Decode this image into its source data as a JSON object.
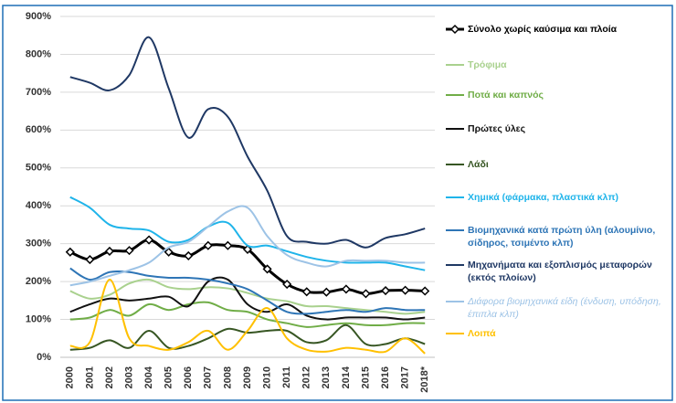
{
  "chart_data": {
    "type": "line",
    "categories": [
      "2000",
      "2001",
      "2002",
      "2003",
      "2004",
      "2005",
      "2006",
      "2007",
      "2008",
      "2009",
      "2010",
      "2011",
      "2012",
      "2013",
      "2014",
      "2015",
      "2016",
      "2017",
      "2018*"
    ],
    "ylim": [
      0,
      900
    ],
    "yticks": [
      {
        "value": 0,
        "label": "0%"
      },
      {
        "value": 100,
        "label": "100%"
      },
      {
        "value": 200,
        "label": "200%"
      },
      {
        "value": 300,
        "label": "300%"
      },
      {
        "value": 400,
        "label": "400%"
      },
      {
        "value": 500,
        "label": "500%"
      },
      {
        "value": 600,
        "label": "600%"
      },
      {
        "value": 700,
        "label": "700%"
      },
      {
        "value": 800,
        "label": "800%"
      },
      {
        "value": 900,
        "label": "900%"
      }
    ],
    "grid": true,
    "legend": "right",
    "series": [
      {
        "name": "Σύνολο χωρίς καύσιμα και πλοία",
        "color": "#000000",
        "values": [
          278,
          258,
          280,
          282,
          310,
          278,
          268,
          295,
          295,
          285,
          233,
          193,
          173,
          172,
          180,
          168,
          176,
          177,
          175
        ]
      },
      {
        "name": "Τρόφιμα",
        "color": "#a9d18e",
        "values": [
          175,
          155,
          165,
          195,
          205,
          185,
          180,
          185,
          182,
          170,
          155,
          148,
          135,
          135,
          130,
          125,
          120,
          115,
          120
        ]
      },
      {
        "name": "Ποτά και καπνός",
        "color": "#70ad47",
        "values": [
          100,
          105,
          125,
          110,
          140,
          125,
          140,
          145,
          125,
          120,
          100,
          90,
          80,
          85,
          90,
          85,
          85,
          90,
          90
        ]
      },
      {
        "name": "Πρώτες ύλες",
        "color": "#111111",
        "values": [
          120,
          140,
          155,
          150,
          155,
          160,
          135,
          200,
          205,
          140,
          120,
          140,
          110,
          100,
          105,
          105,
          105,
          100,
          105
        ]
      },
      {
        "name": "Λάδι",
        "color": "#375623",
        "values": [
          20,
          25,
          45,
          25,
          70,
          25,
          30,
          50,
          75,
          65,
          70,
          70,
          40,
          45,
          85,
          35,
          35,
          50,
          35
        ]
      },
      {
        "name": "Χημικά (φάρμακα, πλαστικά κλπ)",
        "color": "#1fb4ea",
        "values": [
          423,
          395,
          350,
          340,
          335,
          305,
          310,
          345,
          355,
          295,
          295,
          280,
          265,
          255,
          250,
          250,
          250,
          240,
          230
        ]
      },
      {
        "name": "Βιομηχανικά κατά πρώτη ύλη (αλουμίνιο, σίδηρος, τσιμέντο κλπ)",
        "color": "#2e75b6",
        "values": [
          235,
          205,
          225,
          225,
          215,
          210,
          210,
          205,
          195,
          180,
          150,
          120,
          115,
          120,
          125,
          120,
          130,
          125,
          125
        ]
      },
      {
        "name": "Μηχανήματα και εξοπλισμός μεταφορών (εκτός πλοίων)",
        "color": "#1f3864",
        "values": [
          740,
          725,
          705,
          745,
          845,
          710,
          580,
          655,
          635,
          530,
          440,
          320,
          305,
          300,
          310,
          290,
          315,
          325,
          340
        ]
      },
      {
        "name": "Διάφορα βιομηχανικά είδη (ένδυση, υπόδηση, έπιπλα κλπ)",
        "color": "#9dc3e6",
        "values": [
          190,
          200,
          215,
          230,
          250,
          290,
          305,
          345,
          385,
          395,
          320,
          270,
          250,
          240,
          255,
          255,
          255,
          250,
          250
        ]
      },
      {
        "name": "Λοιπά",
        "color": "#ffc000",
        "values": [
          30,
          40,
          205,
          50,
          30,
          20,
          40,
          70,
          20,
          70,
          130,
          50,
          20,
          15,
          25,
          20,
          15,
          50,
          10
        ]
      }
    ]
  }
}
